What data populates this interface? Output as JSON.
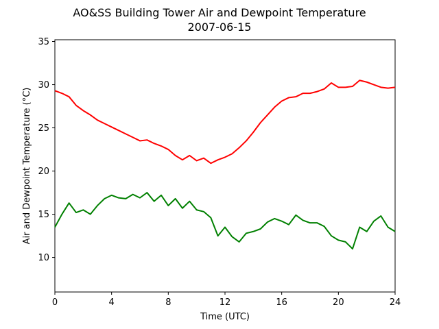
{
  "chart_data": {
    "type": "line",
    "title": "AO&SS Building Tower Air and Dewpoint Temperature",
    "subtitle": "2007-06-15",
    "xlabel": "Time (UTC)",
    "ylabel": "Air and Dewpoint Temperature (°C)",
    "xlim": [
      0,
      24
    ],
    "ylim": [
      6,
      35.2
    ],
    "xticks": [
      0,
      4,
      8,
      12,
      16,
      20,
      24
    ],
    "yticks": [
      10,
      15,
      20,
      25,
      30,
      35
    ],
    "grid": false,
    "legend": "none",
    "series": [
      {
        "color": "#ff0000",
        "x": [
          0,
          0.5,
          1,
          1.5,
          2,
          2.5,
          3,
          3.5,
          4,
          4.5,
          5,
          5.5,
          6,
          6.5,
          7,
          7.5,
          8,
          8.5,
          9,
          9.5,
          10,
          10.5,
          11,
          11.5,
          12,
          12.5,
          13,
          13.5,
          14,
          14.5,
          15,
          15.5,
          16,
          16.5,
          17,
          17.5,
          18,
          18.5,
          19,
          19.5,
          20,
          20.5,
          21,
          21.5,
          22,
          22.5,
          23,
          23.5,
          24
        ],
        "y": [
          29.3,
          29.0,
          28.6,
          27.6,
          27.0,
          26.5,
          25.9,
          25.5,
          25.1,
          24.7,
          24.3,
          23.9,
          23.5,
          23.6,
          23.2,
          22.9,
          22.5,
          21.8,
          21.3,
          21.8,
          21.2,
          21.5,
          20.9,
          21.3,
          21.6,
          22.0,
          22.7,
          23.5,
          24.5,
          25.6,
          26.5,
          27.4,
          28.1,
          28.5,
          28.6,
          29.0,
          29.0,
          29.2,
          29.5,
          30.2,
          29.7,
          29.7,
          29.8,
          30.5,
          30.3,
          30.0,
          29.7,
          29.6,
          29.7
        ]
      },
      {
        "color": "#008000",
        "x": [
          0,
          0.5,
          1,
          1.5,
          2,
          2.5,
          3,
          3.5,
          4,
          4.5,
          5,
          5.5,
          6,
          6.5,
          7,
          7.5,
          8,
          8.5,
          9,
          9.5,
          10,
          10.5,
          11,
          11.5,
          12,
          12.5,
          13,
          13.5,
          14,
          14.5,
          15,
          15.5,
          16,
          16.5,
          17,
          17.5,
          18,
          18.5,
          19,
          19.5,
          20,
          20.5,
          21,
          21.5,
          22,
          22.5,
          23,
          23.5,
          24
        ],
        "y": [
          13.5,
          15.0,
          16.3,
          15.2,
          15.5,
          15.0,
          16.0,
          16.8,
          17.2,
          16.9,
          16.8,
          17.3,
          16.9,
          17.5,
          16.5,
          17.2,
          16.0,
          16.8,
          15.7,
          16.5,
          15.5,
          15.3,
          14.6,
          12.5,
          13.5,
          12.4,
          11.8,
          12.8,
          13.0,
          13.3,
          14.1,
          14.5,
          14.2,
          13.8,
          14.9,
          14.3,
          14.0,
          14.0,
          13.6,
          12.5,
          12.0,
          11.8,
          11.0,
          13.5,
          13.0,
          14.2,
          14.8,
          13.5,
          13.0
        ]
      }
    ]
  }
}
